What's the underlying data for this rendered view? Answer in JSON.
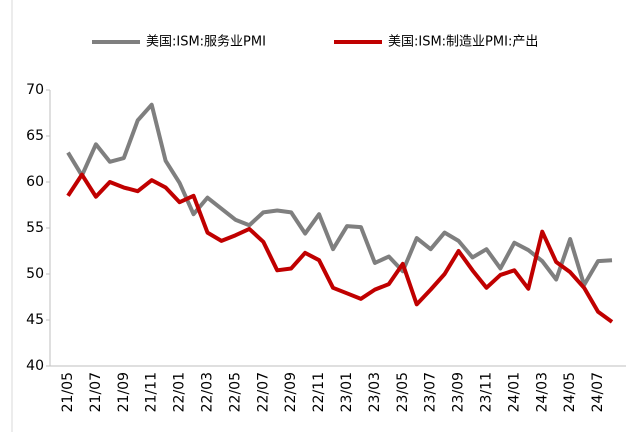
{
  "chart_data": {
    "type": "line",
    "categories": [
      "21/05",
      null,
      "21/07",
      null,
      "21/09",
      null,
      "21/11",
      null,
      "22/01",
      null,
      "22/03",
      null,
      "22/05",
      null,
      "22/07",
      null,
      "22/09",
      null,
      "22/11",
      null,
      "23/01",
      null,
      "23/03",
      null,
      "23/05",
      null,
      "23/07",
      null,
      "23/09",
      null,
      "23/11",
      null,
      "24/01",
      null,
      "24/03",
      null,
      "24/05",
      null,
      "24/07",
      null
    ],
    "series": [
      {
        "name": "美国:ISM:服务业PMI",
        "color": "#7f7f7f",
        "values": [
          63.2,
          60.7,
          64.1,
          62.2,
          62.6,
          66.7,
          68.4,
          62.3,
          59.9,
          56.5,
          58.3,
          57.1,
          55.9,
          55.3,
          56.7,
          56.9,
          56.7,
          54.4,
          56.5,
          52.7,
          55.2,
          55.1,
          51.2,
          51.9,
          50.3,
          53.9,
          52.7,
          54.5,
          53.6,
          51.8,
          52.7,
          50.6,
          53.4,
          52.6,
          51.4,
          49.4,
          53.8,
          48.8,
          51.4,
          51.5
        ]
      },
      {
        "name": "美国:ISM:制造业PMI:产出",
        "color": "#c00000",
        "values": [
          58.5,
          60.8,
          58.4,
          60.0,
          59.4,
          59.0,
          60.2,
          59.4,
          57.8,
          58.5,
          54.5,
          53.6,
          54.2,
          54.9,
          53.5,
          50.4,
          50.6,
          52.3,
          51.5,
          48.5,
          47.9,
          47.3,
          48.3,
          48.9,
          51.1,
          46.7,
          48.3,
          50.0,
          52.5,
          50.4,
          48.5,
          49.9,
          50.4,
          48.4,
          54.6,
          51.3,
          50.2,
          48.5,
          45.9,
          44.8
        ]
      }
    ],
    "ylim": [
      40,
      70
    ],
    "yticks": [
      40,
      45,
      50,
      55,
      60,
      65,
      70
    ],
    "grid": false,
    "legend": "top"
  }
}
